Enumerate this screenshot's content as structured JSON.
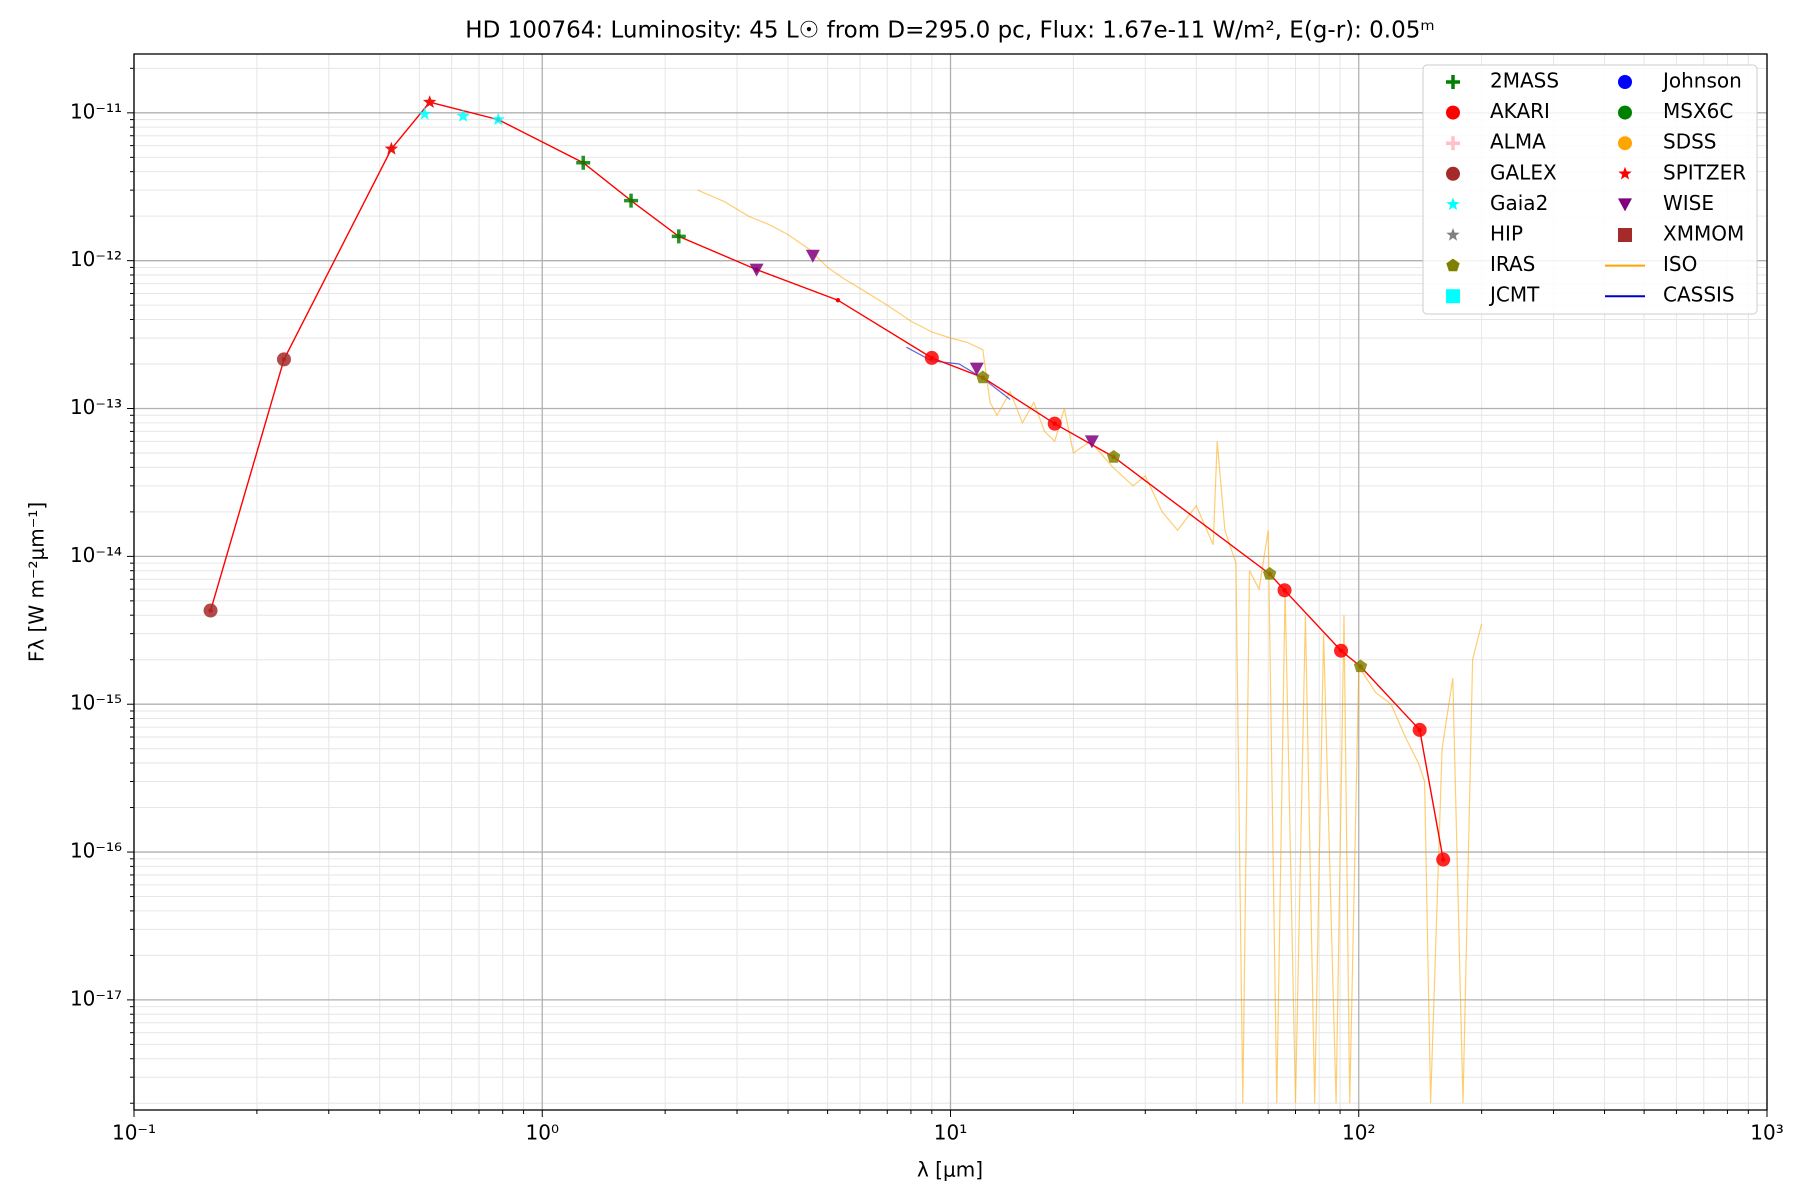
{
  "chart_data": {
    "type": "scatter",
    "title": "HD 100764:  Luminosity: 45 L☉ from D=295.0 pc, Flux: 1.67e-11 W/m², E(g-r): 0.05ᵐ",
    "xlabel": "λ [μm]",
    "ylabel": "Fλ [W m⁻²μm⁻¹]",
    "xscale": "log",
    "yscale": "log",
    "grid": true,
    "legend": "upper right",
    "xlim": [
      0.1,
      1000
    ],
    "ylim": [
      1.8e-18,
      2.5e-11
    ],
    "xticks": [
      {
        "value": 0.1,
        "label": "10⁻¹"
      },
      {
        "value": 1,
        "label": "10⁰"
      },
      {
        "value": 10,
        "label": "10¹"
      },
      {
        "value": 100,
        "label": "10²"
      },
      {
        "value": 1000,
        "label": "10³"
      }
    ],
    "yticks": [
      {
        "value": 1e-17,
        "label": "10⁻¹⁷"
      },
      {
        "value": 1e-16,
        "label": "10⁻¹⁶"
      },
      {
        "value": 1e-15,
        "label": "10⁻¹⁵"
      },
      {
        "value": 1e-14,
        "label": "10⁻¹⁴"
      },
      {
        "value": 1e-13,
        "label": "10⁻¹³"
      },
      {
        "value": 1e-12,
        "label": "10⁻¹²"
      },
      {
        "value": 1e-11,
        "label": "10⁻¹¹"
      }
    ],
    "model": {
      "color": "#ff0000",
      "x": [
        0.154,
        0.233,
        0.427,
        0.53,
        0.78,
        1.26,
        1.65,
        2.16,
        3.35,
        5.3,
        9.0,
        12.0,
        18.0,
        25.1,
        60.5,
        65.8,
        90.5,
        101,
        141,
        161
      ],
      "values": [
        4.3e-15,
        2.15e-13,
        5.7e-12,
        1.18e-11,
        9e-12,
        4.6e-12,
        2.55e-12,
        1.46e-12,
        8.7e-13,
        5.4e-13,
        2.2e-13,
        1.62e-13,
        7.9e-14,
        4.7e-14,
        7.6e-15,
        5.9e-15,
        2.3e-15,
        1.8e-15,
        6.7e-16,
        8.9e-17
      ]
    },
    "series": [
      {
        "name": "2MASS",
        "color": "#008000",
        "marker": "plus",
        "x": [
          1.26,
          1.65,
          2.16
        ],
        "values": [
          4.6e-12,
          2.55e-12,
          1.46e-12
        ]
      },
      {
        "name": "AKARI",
        "color": "#ff0000",
        "marker": "circle",
        "x": [
          9.0,
          18.0,
          65.8,
          90.5,
          141,
          161
        ],
        "values": [
          2.2e-13,
          7.9e-14,
          5.9e-15,
          2.3e-15,
          6.7e-16,
          8.9e-17
        ]
      },
      {
        "name": "ALMA",
        "color": "#ffc0cb",
        "marker": "plus",
        "x": [],
        "values": []
      },
      {
        "name": "GALEX",
        "color": "#a52a2a",
        "marker": "circle",
        "x": [
          0.154,
          0.233
        ],
        "values": [
          4.3e-15,
          2.15e-13
        ]
      },
      {
        "name": "Gaia2",
        "color": "#00ffff",
        "marker": "star",
        "x": [
          0.515,
          0.64,
          0.78
        ],
        "values": [
          9.8e-12,
          9.5e-12,
          9e-12
        ]
      },
      {
        "name": "HIP",
        "color": "#808080",
        "marker": "star",
        "x": [
          0.427,
          0.53
        ],
        "values": [
          5.7e-12,
          1.18e-11
        ]
      },
      {
        "name": "IRAS",
        "color": "#808000",
        "marker": "pentagon",
        "x": [
          12.0,
          25.1,
          60.5,
          101
        ],
        "values": [
          1.62e-13,
          4.7e-14,
          7.6e-15,
          1.8e-15
        ]
      },
      {
        "name": "JCMT",
        "color": "#00ffff",
        "marker": "square",
        "x": [],
        "values": []
      },
      {
        "name": "Johnson",
        "color": "#0000ff",
        "marker": "circle",
        "x": [],
        "values": []
      },
      {
        "name": "MSX6C",
        "color": "#008000",
        "marker": "circle",
        "x": [],
        "values": []
      },
      {
        "name": "SDSS",
        "color": "#ffa500",
        "marker": "circle",
        "x": [],
        "values": []
      },
      {
        "name": "SPITZER",
        "color": "#ff0000",
        "marker": "star",
        "x": [
          0.427,
          0.53
        ],
        "values": [
          5.7e-12,
          1.18e-11
        ]
      },
      {
        "name": "WISE",
        "color": "#800080",
        "marker": "triangle",
        "x": [
          3.35,
          4.6,
          11.6,
          22.2
        ],
        "values": [
          8.7e-13,
          1.08e-12,
          1.86e-13,
          6e-14
        ]
      },
      {
        "name": "XMMOM",
        "color": "#a52a2a",
        "marker": "square",
        "x": [],
        "values": []
      },
      {
        "name": "ISO",
        "color": "#ffa500",
        "marker": "line",
        "x": [
          2.4,
          2.8,
          3.2,
          3.6,
          4.0,
          4.5,
          5,
          5.5,
          6,
          7,
          8,
          9,
          10,
          11,
          12,
          12.5,
          13,
          14,
          15,
          16,
          17,
          18,
          19,
          20,
          22,
          25,
          28,
          30,
          33,
          36,
          40,
          44,
          45,
          47,
          50,
          52,
          54,
          57,
          60,
          63,
          66,
          70,
          74,
          78,
          82,
          88,
          92,
          95,
          100,
          110,
          120,
          130,
          140,
          145,
          150,
          160,
          170,
          180,
          190,
          200
        ],
        "values": [
          3e-12,
          2.5e-12,
          2e-12,
          1.75e-12,
          1.5e-12,
          1.2e-12,
          9e-13,
          7.5e-13,
          6.5e-13,
          5e-13,
          3.9e-13,
          3.3e-13,
          3e-13,
          2.8e-13,
          2.5e-13,
          1.1e-13,
          9e-14,
          1.3e-13,
          8e-14,
          1.1e-13,
          7e-14,
          6e-14,
          1e-13,
          5e-14,
          6e-14,
          4e-14,
          3e-14,
          3.5e-14,
          2e-14,
          1.5e-14,
          2.2e-14,
          1.2e-14,
          6e-14,
          1.5e-14,
          9e-15,
          2e-18,
          8e-15,
          6e-15,
          1.5e-14,
          2e-18,
          6e-15,
          2e-18,
          4e-15,
          2e-18,
          3e-15,
          2e-18,
          4e-15,
          2e-18,
          1.8e-15,
          1.2e-15,
          1e-15,
          6e-16,
          4e-16,
          3e-16,
          2e-18,
          5e-16,
          1.5e-15,
          2e-18,
          2e-15,
          3.5e-15
        ]
      },
      {
        "name": "CASSIS",
        "color": "#0000cc",
        "marker": "line",
        "x": [
          7.8,
          9,
          10.5,
          12,
          14
        ],
        "values": [
          2.6e-13,
          2.1e-13,
          2e-13,
          1.6e-13,
          1.15e-13
        ]
      }
    ]
  }
}
